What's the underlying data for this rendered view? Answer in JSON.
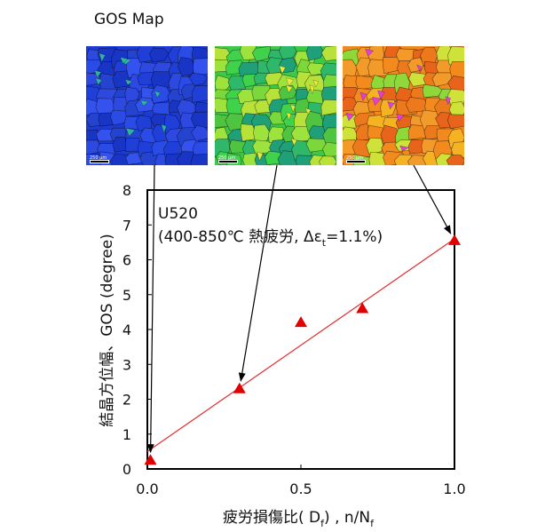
{
  "figure_title": "GOS Map",
  "maps": [
    {
      "name": "map-blue",
      "scale_label": "250 μm",
      "palette": [
        "#1f3fd8",
        "#2a4be6",
        "#1835c6",
        "#3352ee",
        "#2444d0",
        "#2d49df"
      ],
      "accent": "#2fb4a0",
      "bg": "#1d3bd2"
    },
    {
      "name": "map-green",
      "scale_label": "250 μm",
      "palette": [
        "#3fd24a",
        "#7ad83a",
        "#2fb86a",
        "#9ee23d",
        "#4fc440",
        "#1fa078",
        "#b8e23a"
      ],
      "accent": "#eee83a",
      "bg": "#3ec84a"
    },
    {
      "name": "map-orange",
      "scale_label": "250 μm",
      "palette": [
        "#f28a1e",
        "#f5b323",
        "#e8641a",
        "#cfe23a",
        "#f29a2a",
        "#8fd83a",
        "#ec7a1c"
      ],
      "accent": "#e040d8",
      "bg": "#ee8a20"
    }
  ],
  "chart_data": {
    "type": "scatter",
    "annotation_line1": "U520",
    "annotation_line2": "(400-850℃ 熱疲労, Δε",
    "annotation_sub": "t",
    "annotation_tail": "=1.1%)",
    "ylabel": "結晶方位幅、GOS (degree)",
    "xlabel_main": "疲労損傷比( D",
    "xlabel_sub1": "f",
    "xlabel_mid": ") , n/N",
    "xlabel_sub2": "f",
    "xlim": [
      0,
      1.0
    ],
    "ylim": [
      0,
      8
    ],
    "xticks": [
      0,
      0.5,
      1.0
    ],
    "xtick_labels": [
      "0.0",
      "0.5",
      "1.0"
    ],
    "yticks": [
      0,
      1,
      2,
      3,
      4,
      5,
      6,
      7,
      8
    ],
    "ytick_labels": [
      "0",
      "1",
      "2",
      "3",
      "4",
      "5",
      "6",
      "7",
      "8"
    ],
    "series": [
      {
        "points": [
          [
            0.01,
            0.25
          ],
          [
            0.3,
            2.3
          ],
          [
            0.5,
            4.2
          ],
          [
            0.7,
            4.6
          ],
          [
            1.0,
            6.55
          ]
        ],
        "color": "#e00000",
        "marker": "triangle"
      }
    ],
    "fit_line": {
      "from": [
        0.0,
        0.5
      ],
      "to": [
        1.0,
        6.6
      ],
      "color": "#e03030"
    },
    "arrows": [
      {
        "map": 0,
        "to": [
          0.01,
          0.25
        ]
      },
      {
        "map": 1,
        "to": [
          0.3,
          2.3
        ]
      },
      {
        "map": 2,
        "to": [
          1.0,
          6.55
        ]
      }
    ],
    "grid": false
  }
}
